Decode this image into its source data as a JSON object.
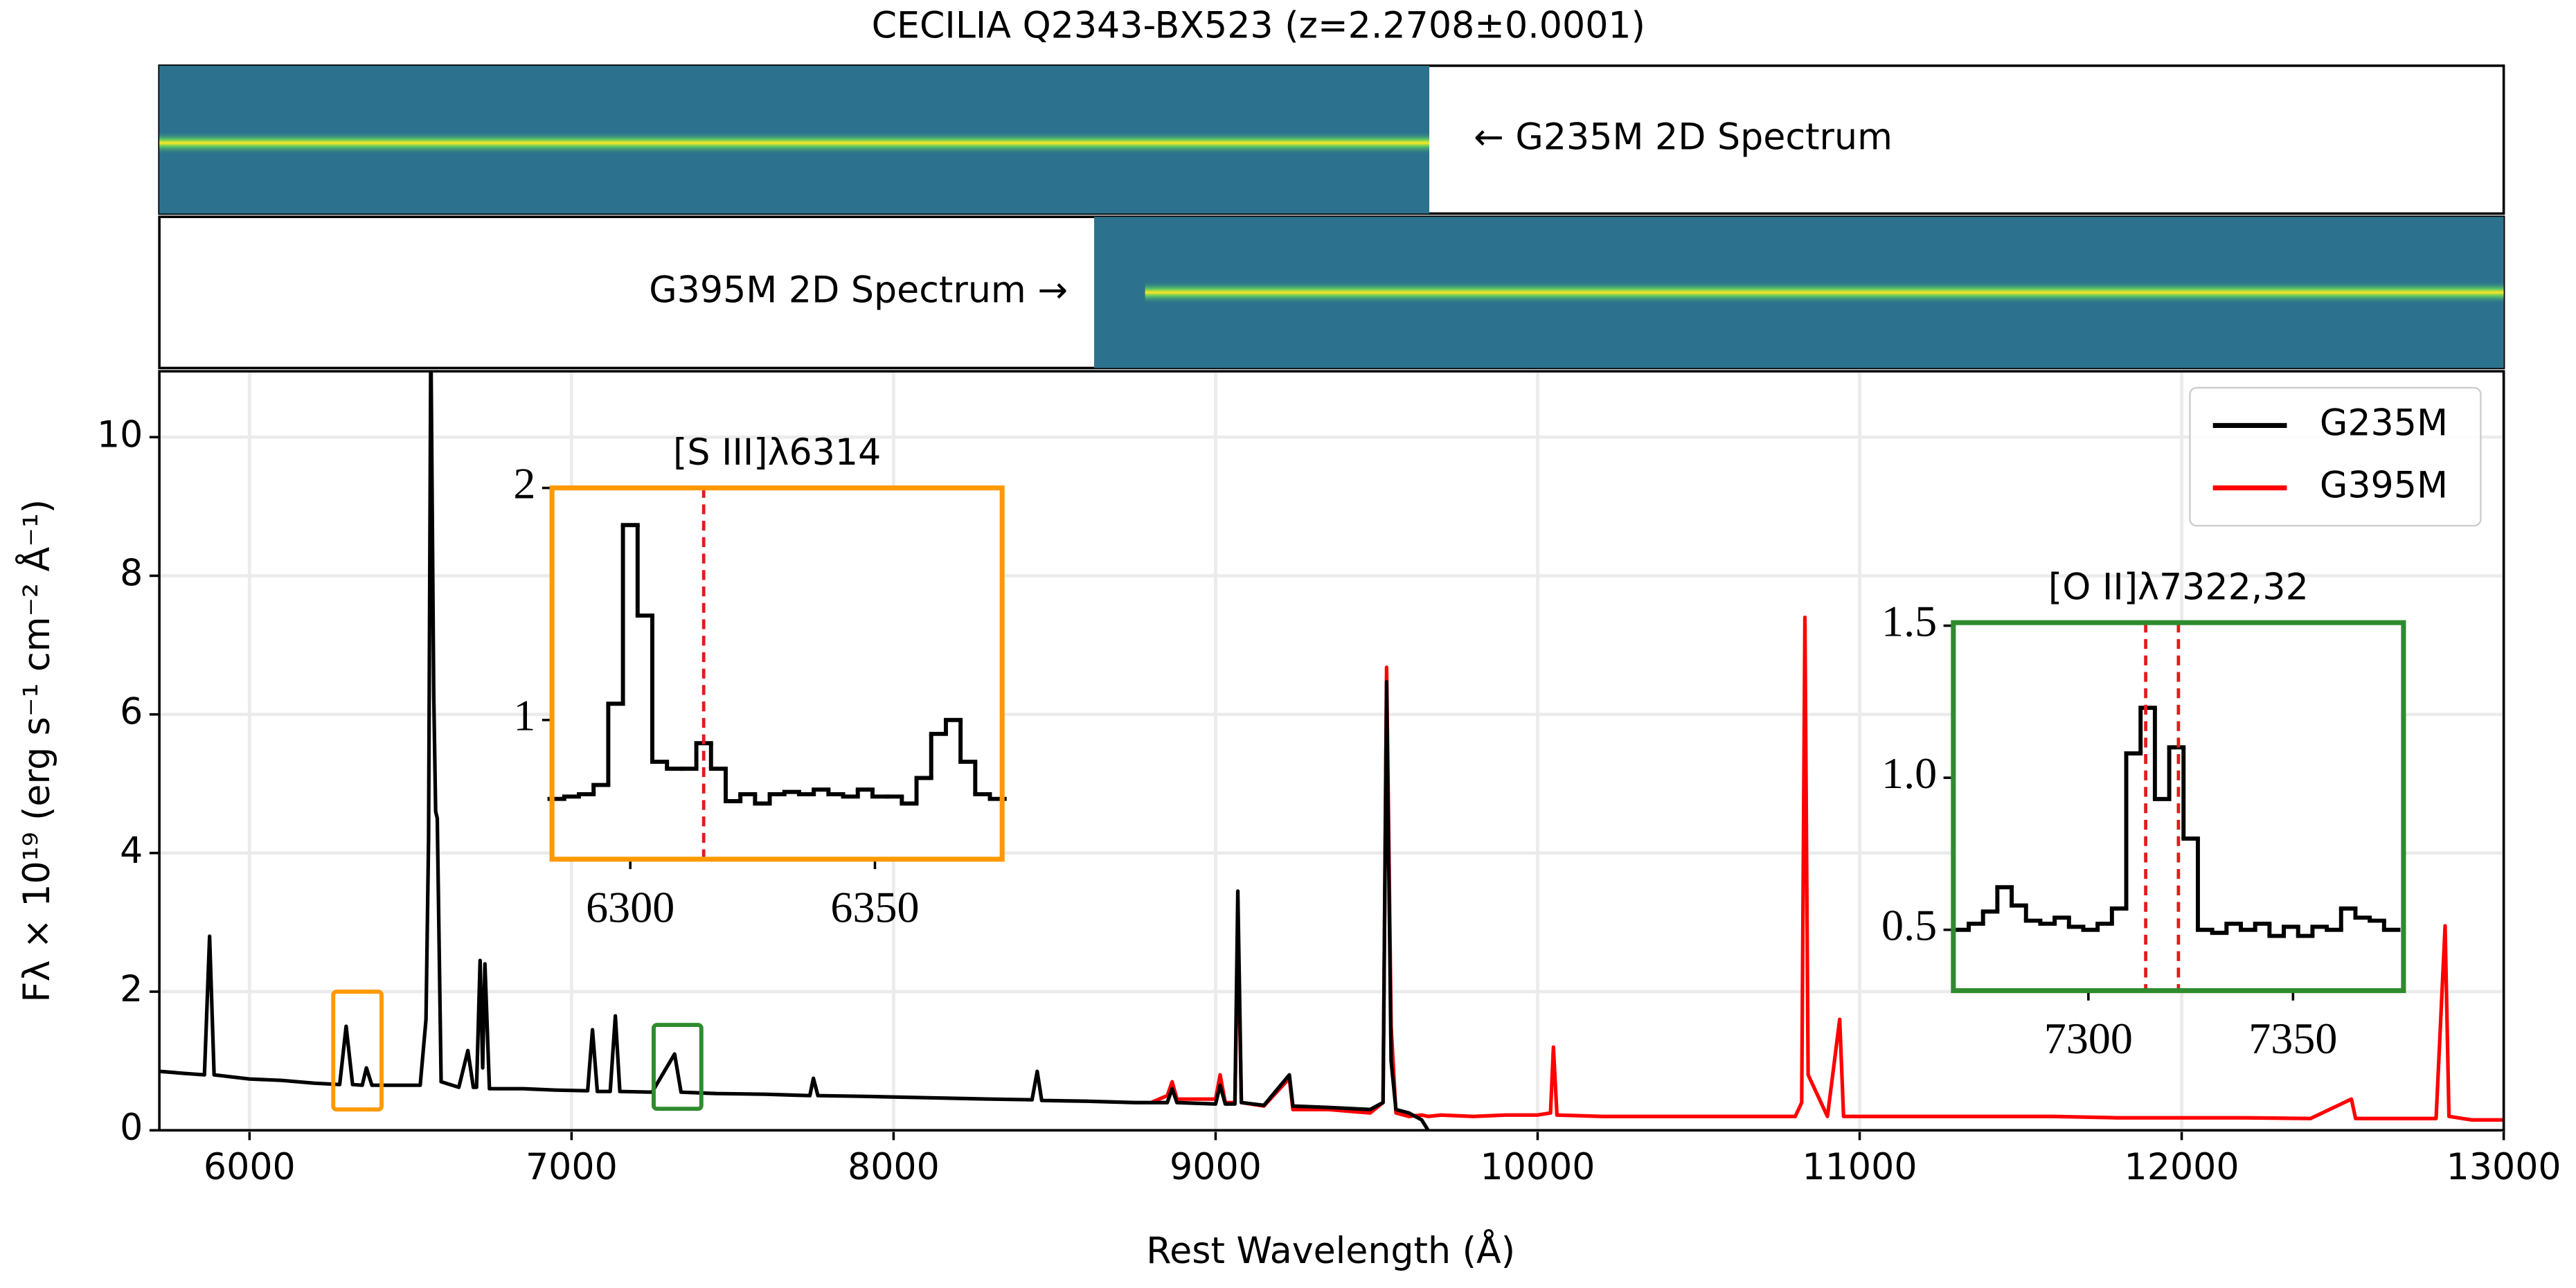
{
  "chart_data": [
    {
      "type": "line",
      "title": "CECILIA Q2343-BX523 (z=2.2708±0.0001)",
      "x_label": "Rest Wavelength (Å)",
      "y_label": "Fλ × 10¹⁹ (erg s⁻¹ cm⁻² Å⁻¹)",
      "annotations": [
        "← G235M 2D Spectrum",
        "G395M 2D Spectrum →"
      ],
      "xlim": [
        5720,
        13000
      ],
      "ylim": [
        0,
        10.95
      ],
      "xticks": [
        6000,
        7000,
        8000,
        9000,
        10000,
        11000,
        12000,
        13000
      ],
      "yticks": [
        0,
        2,
        4,
        6,
        8,
        10
      ],
      "grid": true,
      "legend": "upper right",
      "x": [
        5720,
        5800,
        5860,
        5876,
        5890,
        6000,
        6100,
        6200,
        6280,
        6300,
        6320,
        6350,
        6363,
        6380,
        6450,
        6530,
        6548,
        6556,
        6563,
        6572,
        6578,
        6583,
        6595,
        6650,
        6678,
        6695,
        6705,
        6716,
        6724,
        6731,
        6745,
        6850,
        6950,
        7050,
        7065,
        7080,
        7120,
        7136,
        7150,
        7250,
        7320,
        7340,
        7450,
        7600,
        7740,
        7751,
        7765,
        7900,
        8100,
        8300,
        8430,
        8446,
        8460,
        8600,
        8750,
        8800,
        8850,
        8865,
        8880,
        9000,
        9014,
        9030,
        9060,
        9069,
        9080,
        9150,
        9229,
        9240,
        9350,
        9480,
        9520,
        9531,
        9545,
        9560,
        9600,
        9640,
        9660,
        9700,
        9800,
        9900,
        10000,
        10040,
        10049,
        10060,
        10200,
        10400,
        10600,
        10800,
        10820,
        10830,
        10840,
        10900,
        10938,
        10950,
        11000,
        11200,
        11400,
        11600,
        11800,
        12000,
        12200,
        12400,
        12527,
        12540,
        12600,
        12700,
        12790,
        12818,
        12830,
        12900,
        13000
      ],
      "series": [
        {
          "name": "G395M",
          "color": "#ff0000",
          "values": [
            null,
            null,
            null,
            null,
            null,
            null,
            null,
            null,
            null,
            null,
            null,
            null,
            null,
            null,
            null,
            null,
            null,
            null,
            null,
            null,
            null,
            null,
            null,
            null,
            null,
            null,
            null,
            null,
            null,
            null,
            null,
            null,
            null,
            null,
            null,
            null,
            null,
            null,
            null,
            null,
            null,
            null,
            null,
            null,
            null,
            null,
            null,
            null,
            null,
            null,
            null,
            null,
            null,
            null,
            null,
            0.4,
            0.5,
            0.7,
            0.45,
            0.45,
            0.8,
            0.4,
            0.4,
            3.0,
            0.4,
            0.35,
            0.75,
            0.3,
            0.3,
            0.25,
            0.4,
            6.68,
            1.5,
            0.25,
            0.2,
            0.22,
            0.2,
            0.22,
            0.2,
            0.22,
            0.22,
            0.25,
            1.2,
            0.22,
            0.2,
            0.2,
            0.2,
            0.2,
            0.4,
            7.4,
            0.8,
            0.2,
            1.6,
            0.2,
            0.2,
            0.2,
            0.2,
            0.2,
            0.18,
            0.18,
            0.18,
            0.17,
            0.45,
            0.17,
            0.17,
            0.17,
            0.17,
            2.95,
            0.2,
            0.15,
            0.15
          ]
        },
        {
          "name": "G235M",
          "color": "#000000",
          "values": [
            0.85,
            0.82,
            0.8,
            2.8,
            0.8,
            0.74,
            0.72,
            0.68,
            0.66,
            1.5,
            0.66,
            0.65,
            0.9,
            0.65,
            0.65,
            0.65,
            1.6,
            4.2,
            11.5,
            6.3,
            4.6,
            4.5,
            0.7,
            0.62,
            1.15,
            0.62,
            0.62,
            2.45,
            0.9,
            2.4,
            0.6,
            0.6,
            0.58,
            0.57,
            1.45,
            0.56,
            0.56,
            1.65,
            0.56,
            0.55,
            1.1,
            0.55,
            0.53,
            0.52,
            0.5,
            0.75,
            0.5,
            0.49,
            0.47,
            0.45,
            0.44,
            0.85,
            0.43,
            0.42,
            0.4,
            0.4,
            0.4,
            0.6,
            0.4,
            0.38,
            0.65,
            0.38,
            0.38,
            3.45,
            0.4,
            0.36,
            0.8,
            0.35,
            0.33,
            0.3,
            0.4,
            6.47,
            1.0,
            0.3,
            0.25,
            0.15,
            0,
            null,
            null,
            null,
            null,
            null,
            null,
            null,
            null,
            null,
            null,
            null,
            null,
            null,
            null,
            null,
            null,
            null,
            null,
            null,
            null,
            null,
            null,
            null,
            null,
            null,
            null,
            null,
            null,
            null,
            null,
            null,
            null,
            null,
            null
          ]
        }
      ]
    },
    {
      "type": "line",
      "drawstyle": "steps-mid",
      "title": "[S III]λ6314",
      "frame_color": "#ff9900",
      "color": "#000000",
      "region_x": [
        6260,
        6410
      ],
      "region_y": [
        0.3,
        2.0
      ],
      "vlines": [
        6315
      ],
      "vline_color": "#e41a1c",
      "xlim": [
        6284,
        6376
      ],
      "ylim": [
        0.4,
        2.0
      ],
      "xticks": [
        6300,
        6350
      ],
      "yticks": [
        1,
        2
      ],
      "x": [
        6285,
        6288,
        6291,
        6294,
        6297,
        6300,
        6303,
        6306,
        6309,
        6312,
        6315,
        6318,
        6321,
        6324,
        6327,
        6330,
        6333,
        6336,
        6339,
        6342,
        6345,
        6348,
        6351,
        6354,
        6357,
        6360,
        6363,
        6366,
        6369,
        6372,
        6375
      ],
      "values": [
        0.66,
        0.67,
        0.68,
        0.72,
        1.07,
        1.84,
        1.45,
        0.82,
        0.79,
        0.79,
        0.9,
        0.79,
        0.65,
        0.68,
        0.64,
        0.68,
        0.69,
        0.68,
        0.7,
        0.68,
        0.67,
        0.7,
        0.67,
        0.67,
        0.64,
        0.75,
        0.94,
        1.0,
        0.82,
        0.68,
        0.66
      ]
    },
    {
      "type": "line",
      "drawstyle": "steps-mid",
      "title": "[O II]λ7322,32",
      "frame_color": "#2e8b2e",
      "color": "#000000",
      "region_x": [
        7255,
        7403
      ],
      "region_y": [
        0.31,
        1.52
      ],
      "vlines": [
        7314,
        7322
      ],
      "vline_color": "#e41a1c",
      "xlim": [
        7267,
        7377
      ],
      "ylim": [
        0.3,
        1.51
      ],
      "xticks": [
        7300,
        7350
      ],
      "yticks": [
        0.5,
        {
          "value": 1,
          "label": "1.0"
        },
        1.5
      ],
      "x": [
        7269,
        7272.5,
        7276,
        7279.5,
        7283,
        7286.5,
        7290,
        7293.5,
        7297,
        7300.5,
        7304,
        7307.5,
        7311,
        7314.5,
        7318,
        7321.5,
        7325,
        7328.5,
        7332,
        7335.5,
        7339,
        7342.5,
        7346,
        7349.5,
        7353,
        7356.5,
        7360,
        7363.5,
        7367,
        7370.5,
        7374
      ],
      "values": [
        0.5,
        0.52,
        0.56,
        0.64,
        0.58,
        0.53,
        0.52,
        0.54,
        0.51,
        0.5,
        0.52,
        0.57,
        1.08,
        1.23,
        0.93,
        1.1,
        0.8,
        0.5,
        0.49,
        0.52,
        0.5,
        0.52,
        0.48,
        0.51,
        0.48,
        0.51,
        0.5,
        0.57,
        0.54,
        0.53,
        0.5
      ]
    }
  ]
}
